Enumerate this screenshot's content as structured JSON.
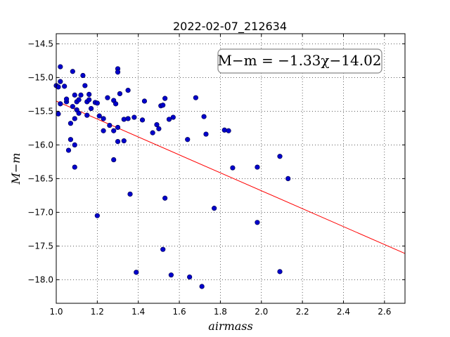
{
  "chart_data": {
    "type": "scatter",
    "title": "2022-02-07_212634",
    "xlabel": "airmass",
    "ylabel": "M−m",
    "xlim": [
      1.0,
      2.7
    ],
    "ylim": [
      -18.35,
      -14.35
    ],
    "y_inverted": true,
    "grid": true,
    "x_ticks": [
      1.0,
      1.2,
      1.4,
      1.6,
      1.8,
      2.0,
      2.2,
      2.4,
      2.6
    ],
    "x_tick_labels": [
      "1.0",
      "1.2",
      "1.4",
      "1.6",
      "1.8",
      "2.0",
      "2.2",
      "2.4",
      "2.6"
    ],
    "y_ticks": [
      -14.5,
      -15.0,
      -15.5,
      -16.0,
      -16.5,
      -17.0,
      -17.5,
      -18.0
    ],
    "y_tick_labels": [
      "−14.5",
      "−15.0",
      "−15.5",
      "−16.0",
      "−16.5",
      "−17.0",
      "−17.5",
      "−18.0"
    ],
    "annotation": "M−m = −1.33χ−14.02",
    "annotation_placement": "top-right",
    "fit": {
      "slope": -1.33,
      "intercept": -14.02,
      "x_range": [
        1.0,
        2.7
      ],
      "color": "#ff0000"
    },
    "marker_color": "#0000cc",
    "points": [
      {
        "x": 1.0,
        "y": -15.12
      },
      {
        "x": 1.01,
        "y": -15.14
      },
      {
        "x": 1.02,
        "y": -15.06
      },
      {
        "x": 1.02,
        "y": -14.84
      },
      {
        "x": 1.01,
        "y": -15.54
      },
      {
        "x": 1.02,
        "y": -15.39
      },
      {
        "x": 1.04,
        "y": -15.13
      },
      {
        "x": 1.05,
        "y": -15.36
      },
      {
        "x": 1.05,
        "y": -15.32
      },
      {
        "x": 1.06,
        "y": -16.08
      },
      {
        "x": 1.07,
        "y": -15.92
      },
      {
        "x": 1.07,
        "y": -15.68
      },
      {
        "x": 1.08,
        "y": -14.91
      },
      {
        "x": 1.08,
        "y": -15.43
      },
      {
        "x": 1.09,
        "y": -15.61
      },
      {
        "x": 1.09,
        "y": -16.0
      },
      {
        "x": 1.09,
        "y": -16.33
      },
      {
        "x": 1.09,
        "y": -15.26
      },
      {
        "x": 1.1,
        "y": -15.36
      },
      {
        "x": 1.1,
        "y": -15.48
      },
      {
        "x": 1.11,
        "y": -15.53
      },
      {
        "x": 1.11,
        "y": -15.33
      },
      {
        "x": 1.12,
        "y": -15.26
      },
      {
        "x": 1.13,
        "y": -14.97
      },
      {
        "x": 1.14,
        "y": -15.12
      },
      {
        "x": 1.15,
        "y": -15.36
      },
      {
        "x": 1.15,
        "y": -15.56
      },
      {
        "x": 1.16,
        "y": -15.33
      },
      {
        "x": 1.16,
        "y": -15.25
      },
      {
        "x": 1.17,
        "y": -15.46
      },
      {
        "x": 1.19,
        "y": -15.37
      },
      {
        "x": 1.2,
        "y": -15.38
      },
      {
        "x": 1.2,
        "y": -17.05
      },
      {
        "x": 1.21,
        "y": -15.57
      },
      {
        "x": 1.23,
        "y": -15.79
      },
      {
        "x": 1.23,
        "y": -15.61
      },
      {
        "x": 1.25,
        "y": -15.3
      },
      {
        "x": 1.26,
        "y": -15.71
      },
      {
        "x": 1.28,
        "y": -15.34
      },
      {
        "x": 1.28,
        "y": -15.79
      },
      {
        "x": 1.28,
        "y": -16.22
      },
      {
        "x": 1.29,
        "y": -15.39
      },
      {
        "x": 1.3,
        "y": -15.74
      },
      {
        "x": 1.3,
        "y": -15.95
      },
      {
        "x": 1.3,
        "y": -14.87
      },
      {
        "x": 1.3,
        "y": -14.92
      },
      {
        "x": 1.31,
        "y": -15.24
      },
      {
        "x": 1.33,
        "y": -15.94
      },
      {
        "x": 1.33,
        "y": -15.62
      },
      {
        "x": 1.35,
        "y": -15.61
      },
      {
        "x": 1.35,
        "y": -15.19
      },
      {
        "x": 1.36,
        "y": -16.73
      },
      {
        "x": 1.38,
        "y": -15.59
      },
      {
        "x": 1.39,
        "y": -17.89
      },
      {
        "x": 1.42,
        "y": -15.63
      },
      {
        "x": 1.43,
        "y": -15.35
      },
      {
        "x": 1.47,
        "y": -15.82
      },
      {
        "x": 1.49,
        "y": -15.7
      },
      {
        "x": 1.5,
        "y": -15.76
      },
      {
        "x": 1.51,
        "y": -15.42
      },
      {
        "x": 1.52,
        "y": -15.41
      },
      {
        "x": 1.52,
        "y": -17.55
      },
      {
        "x": 1.53,
        "y": -16.79
      },
      {
        "x": 1.53,
        "y": -15.31
      },
      {
        "x": 1.55,
        "y": -15.62
      },
      {
        "x": 1.56,
        "y": -17.93
      },
      {
        "x": 1.57,
        "y": -15.59
      },
      {
        "x": 1.64,
        "y": -15.92
      },
      {
        "x": 1.65,
        "y": -17.96
      },
      {
        "x": 1.68,
        "y": -15.3
      },
      {
        "x": 1.71,
        "y": -18.1
      },
      {
        "x": 1.72,
        "y": -15.58
      },
      {
        "x": 1.73,
        "y": -15.84
      },
      {
        "x": 1.77,
        "y": -16.94
      },
      {
        "x": 1.82,
        "y": -15.78
      },
      {
        "x": 1.84,
        "y": -15.79
      },
      {
        "x": 1.86,
        "y": -16.34
      },
      {
        "x": 1.98,
        "y": -16.33
      },
      {
        "x": 1.98,
        "y": -17.15
      },
      {
        "x": 2.09,
        "y": -16.17
      },
      {
        "x": 2.09,
        "y": -17.88
      },
      {
        "x": 2.13,
        "y": -16.5
      }
    ]
  }
}
